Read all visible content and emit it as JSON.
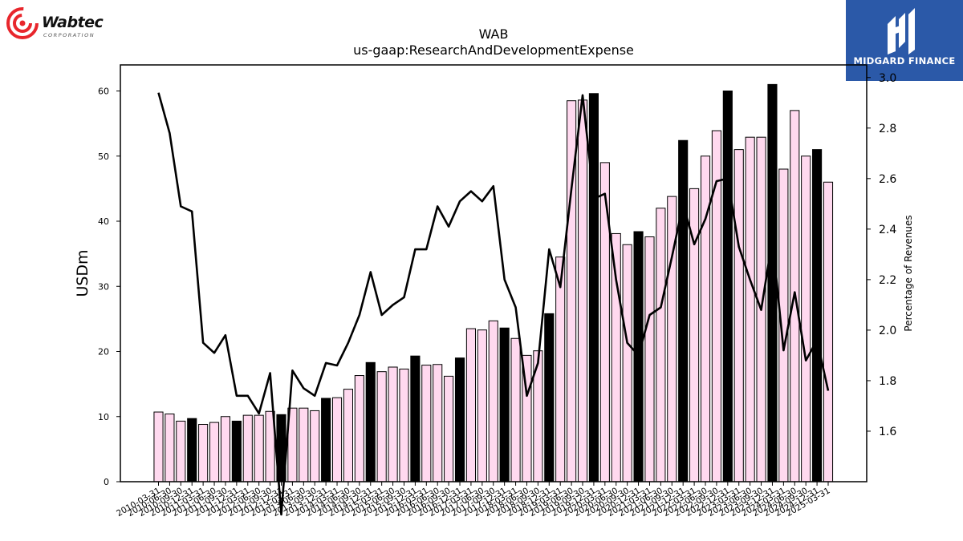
{
  "logos": {
    "left_company": "Wabtec",
    "left_subtitle": "CORPORATION",
    "right_brand": "MIDGARD FINANCE"
  },
  "colors": {
    "bar_fill": "#ffd9ef",
    "bar_highlight": "#000000",
    "bar_edge": "#000000",
    "line": "#000000",
    "brand_blue": "#2b59a8",
    "logo_red": "#e8262c"
  },
  "chart_data": {
    "type": "bar",
    "title": "WAB",
    "subtitle": "us-gaap:ResearchAndDevelopmentExpense",
    "ylabel": "USDm",
    "y2label": "Percentage of Revenues",
    "ylim": [
      0,
      64
    ],
    "y2lim": [
      1.4,
      3.05
    ],
    "yticks": [
      0,
      10,
      20,
      30,
      40,
      50,
      60
    ],
    "y2ticks": [
      1.6,
      1.8,
      2.0,
      2.2,
      2.4,
      2.6,
      2.8,
      3.0
    ],
    "categories": [
      "2010-03-31",
      "2010-06-30",
      "2010-09-30",
      "2010-12-31",
      "2011-03-31",
      "2011-06-30",
      "2011-09-30",
      "2011-12-31",
      "2012-03-31",
      "2012-06-30",
      "2012-09-30",
      "2012-12-31",
      "2013-03-31",
      "2013-06-30",
      "2013-09-30",
      "2013-12-31",
      "2014-03-31",
      "2014-06-30",
      "2014-09-30",
      "2014-12-31",
      "2015-03-31",
      "2015-06-30",
      "2015-09-30",
      "2015-12-31",
      "2016-03-31",
      "2016-06-30",
      "2016-09-30",
      "2016-12-31",
      "2017-03-31",
      "2017-06-30",
      "2017-09-30",
      "2017-12-31",
      "2018-03-31",
      "2018-06-30",
      "2018-09-30",
      "2018-12-31",
      "2019-03-31",
      "2019-06-30",
      "2019-09-30",
      "2019-12-31",
      "2020-03-31",
      "2020-06-30",
      "2020-09-30",
      "2020-12-31",
      "2021-03-31",
      "2021-06-30",
      "2021-09-30",
      "2021-12-31",
      "2022-03-31",
      "2022-06-30",
      "2022-09-30",
      "2022-12-31",
      "2023-03-31",
      "2023-06-30",
      "2023-09-30",
      "2023-12-31",
      "2024-03-31",
      "2024-06-30",
      "2024-09-30",
      "2024-12-31",
      "2025-03-31"
    ],
    "xtick_labels": [
      "2010-03-31",
      "2010-06-30",
      "2010-09-30",
      "2010-12-31",
      "2011-03-31",
      "2011-06-30",
      "2011-09-30",
      "2011-12-31",
      "2012-03-31",
      "2012-06-30",
      "2012-09-30",
      "2012-12-31",
      "2013-03-31",
      "2013-06-30",
      "2013-09-30",
      "2013-12-31",
      "2014-03-31",
      "2014-06-30",
      "2014-09-30",
      "2014-12-31",
      "2015-03-31",
      "2015-06-30",
      "2015-09-30",
      "2015-12-31",
      "2016-03-31",
      "2016-06-30",
      "2016-09-30",
      "2016-12-31",
      "2017-03-31",
      "2017-06-30",
      "2017-09-30",
      "2017-12-31",
      "2018-03-31",
      "2018-06-30",
      "2018-09-30",
      "2018-12-31",
      "2019-03-31",
      "2019-06-30",
      "2019-09-30",
      "2019-12-31",
      "2020-03-31",
      "2020-06-30",
      "2020-09-30",
      "2020-12-31",
      "2021-03-31",
      "2021-06-30",
      "2021-09-30",
      "2021-12-31",
      "2022-03-31",
      "2022-06-30",
      "2022-09-30",
      "2022-12-31",
      "2023-03-31",
      "2023-06-30",
      "2023-09-30",
      "2023-12-31",
      "2024-03-31",
      "2024-06-30",
      "2024-09-30",
      "2024-12-31",
      "2025-03-31"
    ],
    "series": [
      {
        "kind": "bar",
        "axis": "left",
        "values": [
          10.7,
          10.4,
          9.3,
          9.7,
          8.8,
          9.1,
          10.0,
          9.3,
          10.2,
          10.2,
          10.8,
          10.3,
          11.3,
          11.3,
          10.9,
          12.8,
          12.9,
          14.2,
          16.3,
          18.3,
          16.9,
          17.6,
          17.3,
          19.3,
          17.9,
          18.0,
          16.2,
          19.0,
          23.5,
          23.3,
          24.7,
          23.6,
          22.0,
          19.4,
          20.1,
          25.8,
          34.5,
          58.5,
          58.6,
          59.6,
          49.0,
          38.1,
          36.4,
          38.4,
          37.6,
          42.0,
          43.8,
          52.4,
          45.0,
          50.0,
          53.9,
          60.0,
          51.0,
          52.9,
          52.9,
          61.0,
          48.0,
          57.0,
          50.0,
          51.0,
          46.0
        ],
        "highlight": [
          false,
          false,
          false,
          true,
          false,
          false,
          false,
          true,
          false,
          false,
          false,
          true,
          false,
          false,
          false,
          true,
          false,
          false,
          false,
          true,
          false,
          false,
          false,
          true,
          false,
          false,
          false,
          true,
          false,
          false,
          false,
          true,
          false,
          false,
          false,
          true,
          false,
          false,
          false,
          true,
          false,
          false,
          false,
          true,
          false,
          false,
          false,
          true,
          false,
          false,
          false,
          true,
          false,
          false,
          false,
          true,
          false,
          false,
          false,
          true,
          false
        ]
      },
      {
        "kind": "line",
        "axis": "right",
        "values": [
          2.94,
          2.78,
          2.49,
          2.47,
          1.95,
          1.91,
          1.98,
          1.74,
          1.74,
          1.67,
          1.83,
          1.27,
          1.84,
          1.77,
          1.74,
          1.87,
          1.86,
          1.95,
          2.06,
          2.23,
          2.06,
          2.1,
          2.13,
          2.32,
          2.32,
          2.49,
          2.41,
          2.51,
          2.55,
          2.51,
          2.57,
          2.2,
          2.09,
          1.74,
          1.87,
          2.32,
          2.17,
          2.56,
          2.93,
          2.52,
          2.54,
          2.2,
          1.95,
          1.9,
          2.06,
          2.09,
          2.29,
          2.5,
          2.34,
          2.44,
          2.59,
          2.6,
          2.33,
          2.2,
          2.08,
          2.36,
          1.92,
          2.15,
          1.88,
          1.96,
          1.76
        ]
      }
    ]
  }
}
